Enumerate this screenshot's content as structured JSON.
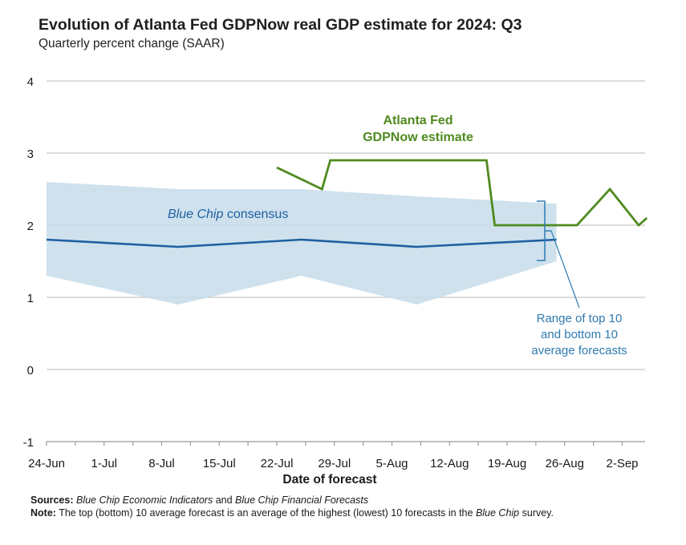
{
  "title": "Evolution of Atlanta Fed GDPNow real GDP estimate for 2024: Q3",
  "subtitle": "Quarterly percent change (SAAR)",
  "chart_data": {
    "type": "line",
    "xlabel": "Date of forecast",
    "ylabel": "Quarterly percent change (SAAR)",
    "ylim": [
      -1,
      4
    ],
    "yticks": [
      "4",
      "3",
      "2",
      "1",
      "0",
      "-1"
    ],
    "xticks": [
      "24-Jun",
      "1-Jul",
      "8-Jul",
      "15-Jul",
      "22-Jul",
      "29-Jul",
      "5-Aug",
      "12-Aug",
      "19-Aug",
      "26-Aug",
      "2-Sep"
    ],
    "grid": true,
    "series": [
      {
        "name": "Blue Chip consensus",
        "color": "#1f5fa0",
        "x_days": [
          0,
          16,
          31,
          45,
          62
        ],
        "values": [
          1.8,
          1.7,
          1.8,
          1.7,
          1.8
        ]
      },
      {
        "name": "Range of top 10 and bottom 10 average forecasts",
        "type": "band",
        "color": "#c6dcea",
        "x_days": [
          0,
          16,
          31,
          45,
          62
        ],
        "upper": [
          2.6,
          2.5,
          2.5,
          2.4,
          2.3
        ],
        "lower": [
          1.3,
          0.9,
          1.3,
          0.9,
          1.5
        ]
      },
      {
        "name": "Atlanta Fed GDPNow estimate",
        "color": "#4f8a1f",
        "x_days": [
          28,
          33.5,
          34.5,
          45.5,
          46.5,
          51.5,
          52.5,
          53.5,
          54.5,
          57.5,
          58.5,
          62.5,
          63.5,
          64.5,
          68.5,
          72,
          73
        ],
        "values": [
          2.8,
          2.5,
          2.9,
          2.9,
          2.9,
          2.9,
          2.9,
          2.9,
          2.0,
          2.0,
          2.0,
          2.0,
          2.0,
          2.0,
          2.5,
          2.0,
          2.1
        ]
      }
    ],
    "labels": {
      "gdpnow_line1": "Atlanta Fed",
      "gdpnow_line2": "GDPNow estimate",
      "consensus_italic": "Blue Chip",
      "consensus_rest": " consensus",
      "range_line1": "Range of top 10",
      "range_line2": "and bottom 10",
      "range_line3": "average forecasts"
    }
  },
  "footer": {
    "sources_label": "Sources:",
    "sources_pub1": "Blue Chip Economic Indicators",
    "sources_and": " and ",
    "sources_pub2": "Blue Chip Financial Forecasts",
    "note_label": "Note:",
    "note_text1": " The top (bottom) 10 average forecast is an average of the highest (lowest) 10 forecasts in the ",
    "note_italic": "Blue Chip",
    "note_text2": " survey."
  },
  "colors": {
    "green": "#4f8a1f",
    "blue": "#1f5fa0",
    "band": "#c6dcea",
    "range_label": "#2f7ab0",
    "grid": "#c8c8c8"
  }
}
